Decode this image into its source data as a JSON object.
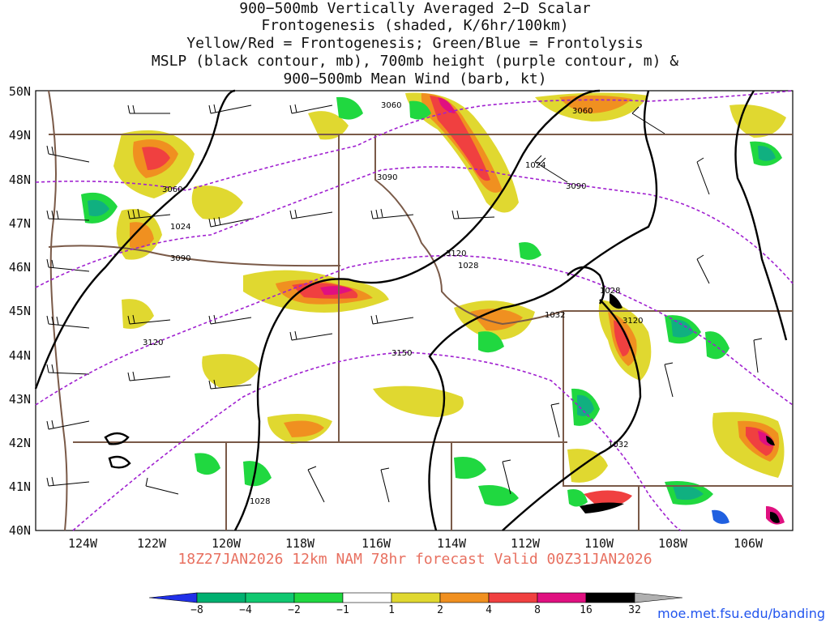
{
  "title_lines": [
    "900−500mb Vertically Averaged 2−D Scalar",
    "Frontogenesis (shaded, K/6hr/100km)",
    "Yellow/Red = Frontogenesis;  Green/Blue = Frontolysis",
    "MSLP (black contour, mb), 700mb height (purple contour, m) &",
    "900−500mb Mean Wind (barb, kt)"
  ],
  "lat_labels": [
    "50N",
    "49N",
    "48N",
    "47N",
    "46N",
    "45N",
    "44N",
    "43N",
    "42N",
    "41N",
    "40N"
  ],
  "lon_labels": [
    "124W",
    "122W",
    "120W",
    "118W",
    "116W",
    "114W",
    "112W",
    "110W",
    "108W",
    "106W"
  ],
  "subtitle": "18Z27JAN2026 12km NAM 78hr forecast Valid 00Z31JAN2026",
  "colorbar": {
    "labels": [
      "−8",
      "−4",
      "−2",
      "−1",
      "1",
      "2",
      "4",
      "8",
      "16",
      "32"
    ],
    "colors": [
      "#2030e8",
      "#00b070",
      "#10c870",
      "#20d840",
      "#ffffff",
      "#e0d830",
      "#f09020",
      "#f04040",
      "#e01080",
      "#000000"
    ]
  },
  "credit": "moe.met.fsu.edu/banding",
  "contour_labels": {
    "mslp": [
      "1024",
      "1024",
      "1028",
      "1028",
      "1028",
      "1032",
      "1032"
    ],
    "height": [
      "3060",
      "3060",
      "3060",
      "3090",
      "3090",
      "3090",
      "3120",
      "3120",
      "3120",
      "3150"
    ]
  },
  "colors": {
    "mslp": "#000000",
    "height": "#a020d0",
    "borders": "#7a5a48"
  }
}
